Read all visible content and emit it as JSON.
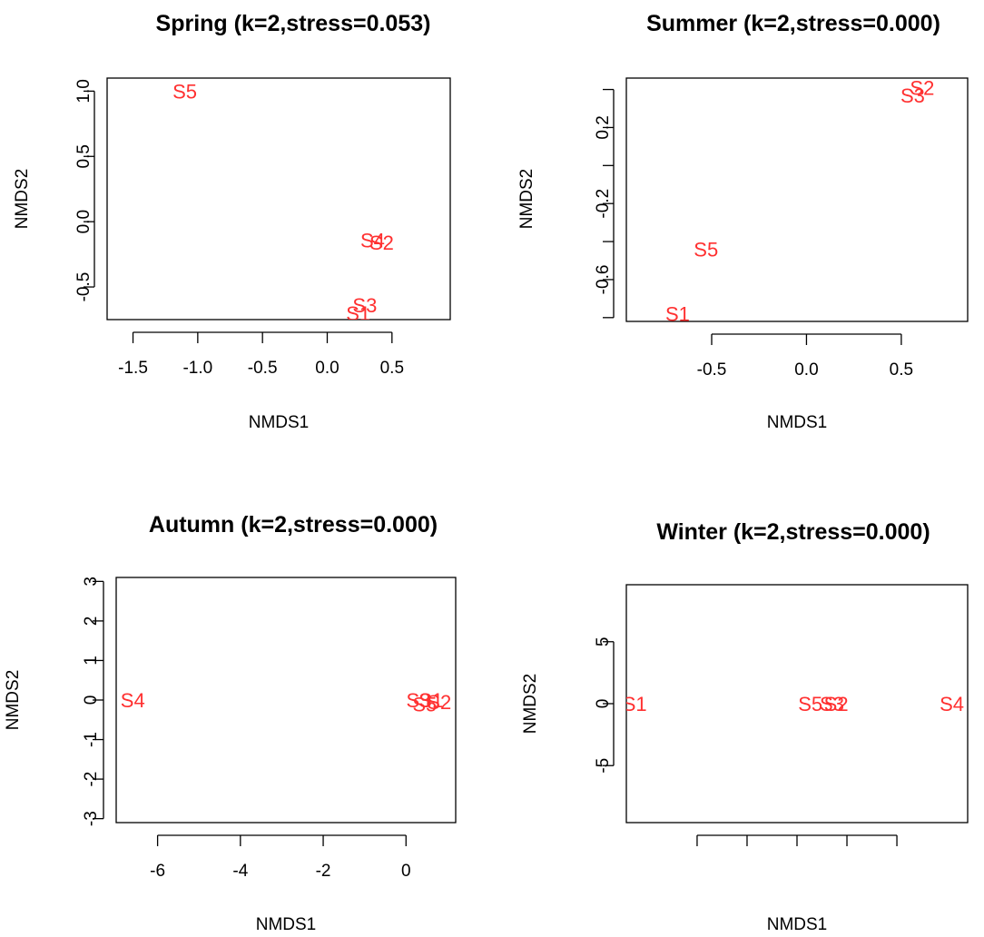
{
  "point_color": "#ff3030",
  "chart_data": [
    {
      "type": "scatter",
      "title": "Spring (k=2,stress=0.053)",
      "xlabel": "NMDS1",
      "ylabel": "NMDS2",
      "xlim": [
        -1.7,
        0.95
      ],
      "ylim": [
        -0.75,
        1.1
      ],
      "xticks": [
        -1.5,
        -1.0,
        -0.5,
        0.0,
        0.5
      ],
      "xtick_labels": [
        "-1.5",
        "-1.0",
        "-0.5",
        "0.0",
        "0.5"
      ],
      "yticks": [
        -0.5,
        0.0,
        0.5,
        1.0
      ],
      "ytick_labels": [
        "-0.5",
        "0.0",
        "0.5",
        "1.0"
      ],
      "points": [
        {
          "label": "S5",
          "x": -1.1,
          "y": 1.0
        },
        {
          "label": "S4",
          "x": 0.35,
          "y": -0.14
        },
        {
          "label": "S2",
          "x": 0.42,
          "y": -0.16
        },
        {
          "label": "S3",
          "x": 0.29,
          "y": -0.64
        },
        {
          "label": "S1",
          "x": 0.24,
          "y": -0.7
        }
      ]
    },
    {
      "type": "scatter",
      "title": "Summer (k=2,stress=0.000)",
      "xlabel": "NMDS1",
      "ylabel": "NMDS2",
      "xlim": [
        -0.95,
        0.85
      ],
      "ylim": [
        -0.82,
        0.46
      ],
      "xticks": [
        -0.5,
        0.0,
        0.5
      ],
      "xtick_labels": [
        "-0.5",
        "0.0",
        "0.5"
      ],
      "yticks": [
        -0.8,
        -0.6,
        -0.4,
        -0.2,
        0.0,
        0.2,
        0.4
      ],
      "ytick_labels": [
        "",
        "-0.6",
        "",
        "-0.2",
        "",
        "0.2",
        ""
      ],
      "points": [
        {
          "label": "S2",
          "x": 0.61,
          "y": 0.41
        },
        {
          "label": "S3",
          "x": 0.56,
          "y": 0.37
        },
        {
          "label": "S5",
          "x": -0.53,
          "y": -0.44
        },
        {
          "label": "S1",
          "x": -0.68,
          "y": -0.78
        }
      ]
    },
    {
      "type": "scatter",
      "title": "Autumn (k=2,stress=0.000)",
      "xlabel": "NMDS1",
      "ylabel": "NMDS2",
      "xlim": [
        -7.0,
        1.2
      ],
      "ylim": [
        -3.1,
        3.1
      ],
      "xticks": [
        -6,
        -4,
        -2,
        0
      ],
      "xtick_labels": [
        "-6",
        "-4",
        "-2",
        "0"
      ],
      "yticks": [
        -3,
        -2,
        -1,
        0,
        1,
        2,
        3
      ],
      "ytick_labels": [
        "-3",
        "-2",
        "-1",
        "0",
        "1",
        "2",
        "3"
      ],
      "points": [
        {
          "label": "S4",
          "x": -6.6,
          "y": 0.0
        },
        {
          "label": "S3",
          "x": 0.3,
          "y": 0.0
        },
        {
          "label": "S5",
          "x": 0.45,
          "y": -0.1
        },
        {
          "label": "S1",
          "x": 0.6,
          "y": 0.0
        },
        {
          "label": "S2",
          "x": 0.8,
          "y": -0.05
        }
      ]
    },
    {
      "type": "scatter",
      "title": "Winter (k=2,stress=0.000)",
      "xlabel": "NMDS1",
      "ylabel": "NMDS2",
      "xlim": [
        -20.5,
        20.5
      ],
      "ylim": [
        -9.6,
        9.6
      ],
      "xticks": [
        -12,
        -6,
        0,
        6,
        12
      ],
      "xtick_labels": [
        "",
        "",
        "",
        "",
        ""
      ],
      "yticks": [
        -5,
        0,
        5
      ],
      "ytick_labels": [
        "-5",
        "0",
        "5"
      ],
      "points": [
        {
          "label": "S1",
          "x": -19.5,
          "y": 0.0
        },
        {
          "label": "S5",
          "x": 1.6,
          "y": 0.0
        },
        {
          "label": "S3",
          "x": 4.2,
          "y": 0.0
        },
        {
          "label": "S2",
          "x": 4.7,
          "y": 0.0
        },
        {
          "label": "S4",
          "x": 18.6,
          "y": 0.0
        }
      ]
    }
  ]
}
